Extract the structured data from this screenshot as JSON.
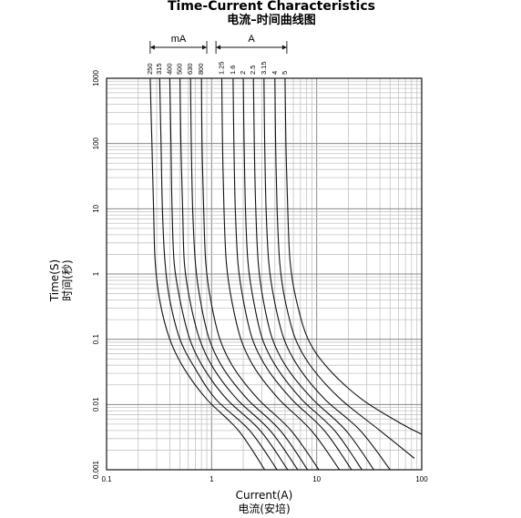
{
  "chart_data": {
    "type": "line",
    "title": "Time-Current Characteristics",
    "subtitle": "电流–时间曲线图",
    "xlabel": "Current(A)",
    "xlabel_cn": "电流(安培)",
    "ylabel": "Time(S)",
    "ylabel_cn": "时间(秒)",
    "x_scale": "log",
    "y_scale": "log",
    "xlim": [
      0.1,
      100
    ],
    "ylim": [
      0.001,
      1000
    ],
    "x_ticks": [
      {
        "value": 0.1,
        "label": "0.1"
      },
      {
        "value": 1,
        "label": "1"
      },
      {
        "value": 10,
        "label": "10"
      },
      {
        "value": 100,
        "label": "100"
      }
    ],
    "y_ticks": [
      {
        "value": 0.001,
        "label": "0.001"
      },
      {
        "value": 0.01,
        "label": "0.01"
      },
      {
        "value": 0.1,
        "label": "0.1"
      },
      {
        "value": 1,
        "label": "1"
      },
      {
        "value": 10,
        "label": "10"
      },
      {
        "value": 100,
        "label": "100"
      },
      {
        "value": 1000,
        "label": "1000"
      }
    ],
    "grid": true,
    "rating_groups": [
      {
        "label": "mA",
        "from": 0.26,
        "to": 0.9
      },
      {
        "label": "A",
        "from": 1.1,
        "to": 5.2
      }
    ],
    "series": [
      {
        "name": "250",
        "points": [
          [
            0.26,
            1000
          ],
          [
            0.27,
            100
          ],
          [
            0.28,
            10
          ],
          [
            0.29,
            1.6
          ],
          [
            0.32,
            0.4
          ],
          [
            0.4,
            0.1
          ],
          [
            0.55,
            0.035
          ],
          [
            0.9,
            0.012
          ],
          [
            1.8,
            0.004
          ],
          [
            3.2,
            0.001
          ]
        ]
      },
      {
        "name": "315",
        "points": [
          [
            0.32,
            1000
          ],
          [
            0.33,
            100
          ],
          [
            0.34,
            10
          ],
          [
            0.36,
            1.5
          ],
          [
            0.4,
            0.4
          ],
          [
            0.5,
            0.1
          ],
          [
            0.7,
            0.035
          ],
          [
            1.1,
            0.012
          ],
          [
            2.3,
            0.004
          ],
          [
            4.2,
            0.001
          ]
        ]
      },
      {
        "name": "400",
        "points": [
          [
            0.4,
            1000
          ],
          [
            0.41,
            100
          ],
          [
            0.42,
            10
          ],
          [
            0.44,
            1.5
          ],
          [
            0.5,
            0.4
          ],
          [
            0.62,
            0.1
          ],
          [
            0.85,
            0.035
          ],
          [
            1.4,
            0.012
          ],
          [
            2.9,
            0.004
          ],
          [
            5.3,
            0.001
          ]
        ]
      },
      {
        "name": "500",
        "points": [
          [
            0.5,
            1000
          ],
          [
            0.51,
            100
          ],
          [
            0.53,
            10
          ],
          [
            0.55,
            1.5
          ],
          [
            0.62,
            0.4
          ],
          [
            0.77,
            0.1
          ],
          [
            1.05,
            0.035
          ],
          [
            1.75,
            0.012
          ],
          [
            3.6,
            0.004
          ],
          [
            6.6,
            0.001
          ]
        ]
      },
      {
        "name": "630",
        "points": [
          [
            0.63,
            1000
          ],
          [
            0.64,
            100
          ],
          [
            0.66,
            10
          ],
          [
            0.7,
            1.5
          ],
          [
            0.78,
            0.4
          ],
          [
            0.95,
            0.1
          ],
          [
            1.3,
            0.035
          ],
          [
            2.2,
            0.012
          ],
          [
            4.5,
            0.004
          ],
          [
            8.2,
            0.001
          ]
        ]
      },
      {
        "name": "800",
        "points": [
          [
            0.8,
            1000
          ],
          [
            0.81,
            100
          ],
          [
            0.84,
            10
          ],
          [
            0.88,
            1.5
          ],
          [
            0.98,
            0.4
          ],
          [
            1.2,
            0.1
          ],
          [
            1.65,
            0.035
          ],
          [
            2.8,
            0.012
          ],
          [
            5.7,
            0.004
          ],
          [
            10.5,
            0.001
          ]
        ]
      },
      {
        "name": "1.25",
        "points": [
          [
            1.25,
            1000
          ],
          [
            1.27,
            100
          ],
          [
            1.31,
            10
          ],
          [
            1.38,
            1.5
          ],
          [
            1.55,
            0.4
          ],
          [
            1.9,
            0.1
          ],
          [
            2.6,
            0.035
          ],
          [
            4.4,
            0.012
          ],
          [
            8.9,
            0.004
          ],
          [
            16.5,
            0.001
          ]
        ]
      },
      {
        "name": "1.6",
        "points": [
          [
            1.6,
            1000
          ],
          [
            1.63,
            100
          ],
          [
            1.68,
            10
          ],
          [
            1.78,
            1.5
          ],
          [
            2.0,
            0.4
          ],
          [
            2.45,
            0.1
          ],
          [
            3.4,
            0.035
          ],
          [
            5.8,
            0.012
          ],
          [
            11.8,
            0.004
          ],
          [
            21.5,
            0.001
          ]
        ]
      },
      {
        "name": "2",
        "points": [
          [
            2.0,
            1000
          ],
          [
            2.04,
            100
          ],
          [
            2.1,
            10
          ],
          [
            2.22,
            1.5
          ],
          [
            2.5,
            0.4
          ],
          [
            3.05,
            0.1
          ],
          [
            4.25,
            0.035
          ],
          [
            7.2,
            0.012
          ],
          [
            14.8,
            0.004
          ],
          [
            27,
            0.001
          ]
        ]
      },
      {
        "name": "2.5",
        "points": [
          [
            2.5,
            1000
          ],
          [
            2.55,
            100
          ],
          [
            2.63,
            10
          ],
          [
            2.78,
            1.5
          ],
          [
            3.1,
            0.4
          ],
          [
            3.8,
            0.1
          ],
          [
            5.3,
            0.035
          ],
          [
            9.2,
            0.012
          ],
          [
            19,
            0.004
          ],
          [
            35,
            0.001
          ]
        ]
      },
      {
        "name": "3.15",
        "points": [
          [
            3.15,
            1000
          ],
          [
            3.2,
            100
          ],
          [
            3.3,
            10
          ],
          [
            3.5,
            1.5
          ],
          [
            3.95,
            0.4
          ],
          [
            4.9,
            0.1
          ],
          [
            6.9,
            0.035
          ],
          [
            12,
            0.012
          ],
          [
            26,
            0.004
          ],
          [
            50,
            0.001
          ]
        ]
      },
      {
        "name": "4",
        "points": [
          [
            4.0,
            1000
          ],
          [
            4.07,
            100
          ],
          [
            4.2,
            10
          ],
          [
            4.45,
            1.5
          ],
          [
            5.0,
            0.4
          ],
          [
            6.3,
            0.1
          ],
          [
            9.2,
            0.035
          ],
          [
            17,
            0.012
          ],
          [
            40,
            0.004
          ],
          [
            85,
            0.0015
          ]
        ]
      },
      {
        "name": "5",
        "points": [
          [
            5.0,
            1000
          ],
          [
            5.1,
            100
          ],
          [
            5.3,
            10
          ],
          [
            5.6,
            1.5
          ],
          [
            6.4,
            0.4
          ],
          [
            8.3,
            0.1
          ],
          [
            13,
            0.035
          ],
          [
            27,
            0.012
          ],
          [
            65,
            0.005
          ],
          [
            100,
            0.0035
          ]
        ]
      }
    ]
  }
}
